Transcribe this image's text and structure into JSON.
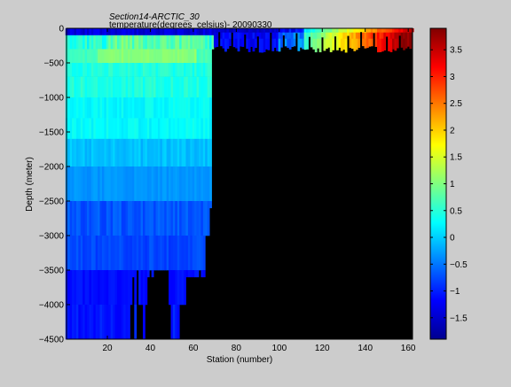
{
  "chart_data": {
    "type": "heatmap",
    "title": "Section14-ARCTIC_30",
    "subtitle": "temperature(degrees_celsius)- 20090330",
    "xlabel": "Station (number)",
    "ylabel": "Depth (meter)",
    "xlim": [
      1,
      162
    ],
    "ylim": [
      -4500,
      0
    ],
    "x_ticks": [
      20,
      40,
      60,
      80,
      100,
      120,
      140,
      160
    ],
    "y_ticks": [
      0,
      -500,
      -1000,
      -1500,
      -2000,
      -2500,
      -3000,
      -3500,
      -4000,
      -4500
    ],
    "colorbar": {
      "range": [
        -1.9,
        3.9
      ],
      "ticks": [
        -1.5,
        -1,
        -0.5,
        0,
        0.5,
        1,
        1.5,
        2,
        2.5,
        3,
        3.5
      ],
      "colormap": "jet",
      "colors": [
        "#00008f",
        "#0000ff",
        "#0080ff",
        "#00ffff",
        "#80ff80",
        "#ffff00",
        "#ff8000",
        "#ff0000",
        "#800000"
      ]
    },
    "no_data_color": "#000000",
    "grid": false
  }
}
